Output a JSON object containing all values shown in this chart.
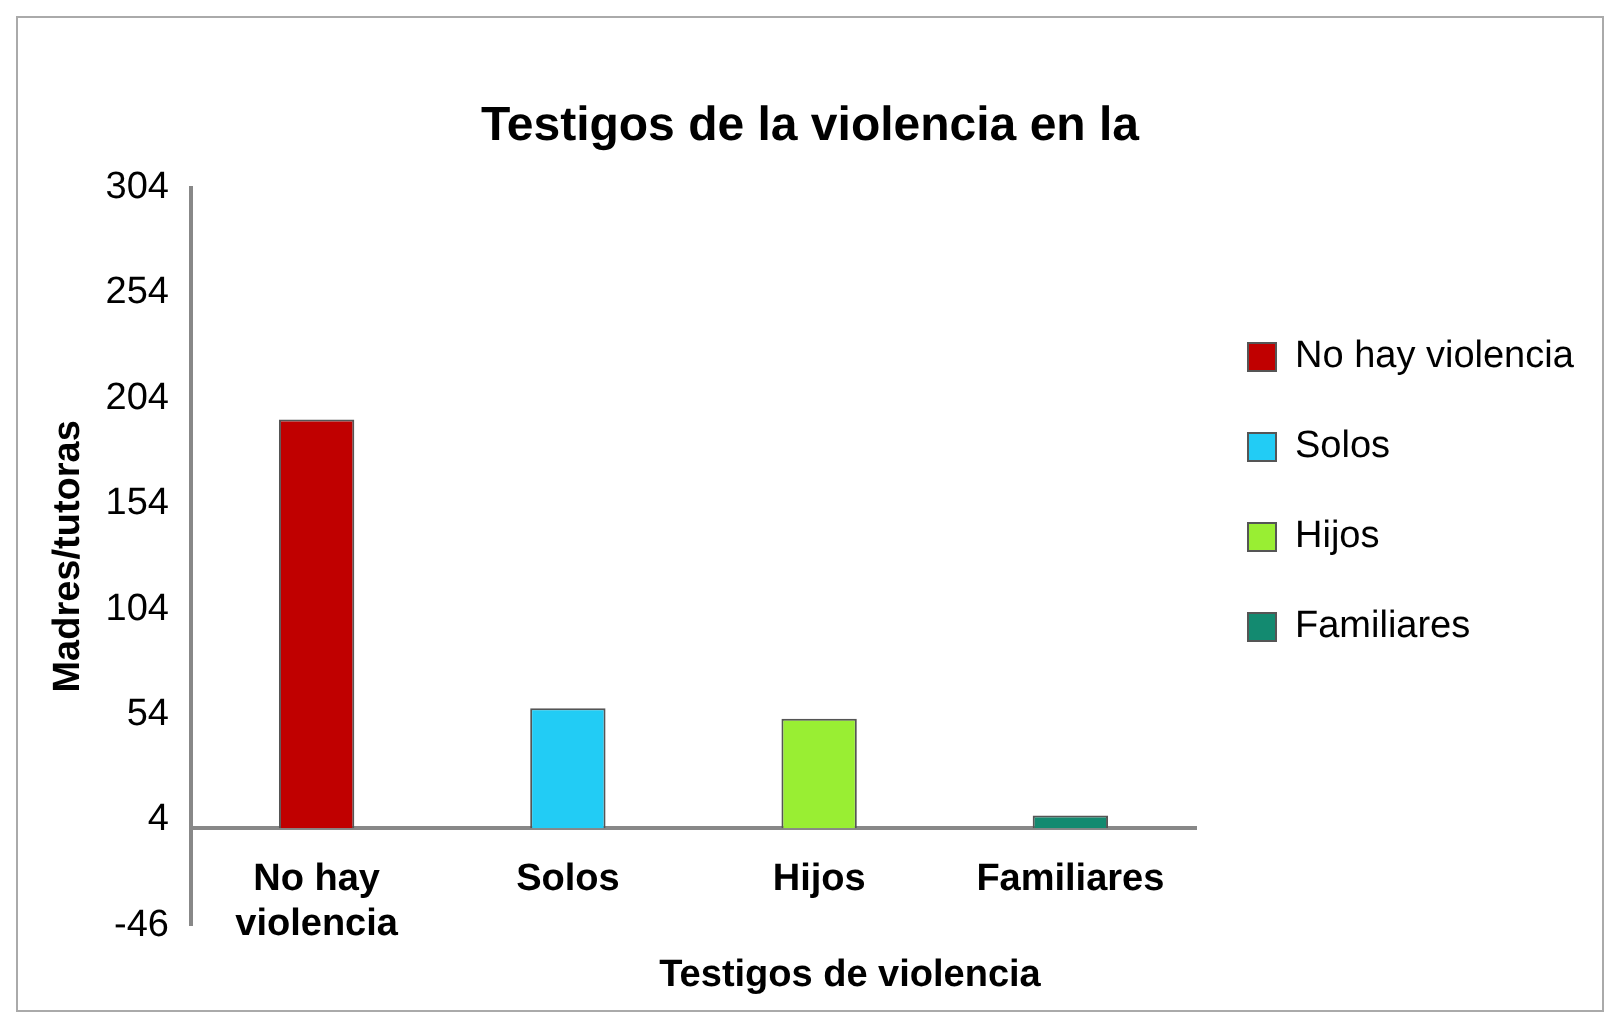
{
  "chart_data": {
    "type": "bar",
    "title": "Testigos de la violencia en la",
    "xlabel": "Testigos de violencia",
    "ylabel": "Madres/tutoras",
    "categories": [
      "No hay violencia",
      "Solos",
      "Hijos",
      "Familiares"
    ],
    "series": [
      {
        "name": "No hay violencia",
        "color": "#c00000",
        "values": [
          194,
          null,
          null,
          null
        ]
      },
      {
        "name": "Solos",
        "color": "#22ccf5",
        "values": [
          null,
          57,
          null,
          null
        ]
      },
      {
        "name": "Hijos",
        "color": "#99ee33",
        "values": [
          null,
          null,
          52,
          null
        ]
      },
      {
        "name": "Familiares",
        "color": "#138a70",
        "values": [
          null,
          null,
          null,
          6
        ]
      }
    ],
    "ylim": [
      -46,
      304
    ],
    "yticks": [
      -46,
      4,
      54,
      104,
      154,
      204,
      254,
      304
    ],
    "grid": false,
    "legend": "right"
  }
}
